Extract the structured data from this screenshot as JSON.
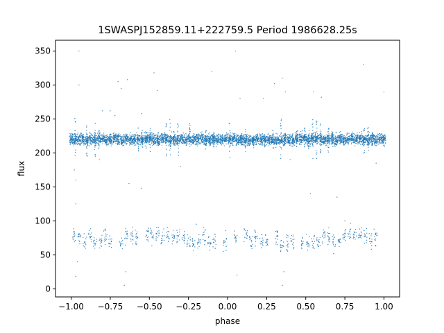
{
  "chart_data": {
    "type": "scatter",
    "title": "1SWASPJ152859.11+222759.5 Period 1986628.25s",
    "xlabel": "phase",
    "ylabel": "flux",
    "xlim": [
      -1.1,
      1.1
    ],
    "ylim": [
      -12,
      366
    ],
    "xticks": [
      -1.0,
      -0.75,
      -0.5,
      -0.25,
      0.0,
      0.25,
      0.5,
      0.75,
      1.0
    ],
    "xtick_labels": [
      "−1.00",
      "−0.75",
      "−0.50",
      "−0.25",
      "0.00",
      "0.25",
      "0.50",
      "0.75",
      "1.00"
    ],
    "yticks": [
      0,
      50,
      100,
      150,
      200,
      250,
      300,
      350
    ],
    "ytick_labels": [
      "0",
      "50",
      "100",
      "150",
      "200",
      "250",
      "300",
      "350"
    ],
    "grid": false,
    "point_color": "#1f77b4",
    "series": [
      {
        "name": "",
        "bands": [
          {
            "x_range": [
              -1.0,
              1.0
            ],
            "y_center": 220,
            "y_spread": 4,
            "points_per_cluster": 60
          },
          {
            "x_range": [
              -0.98,
              0.98
            ],
            "y_center": 73,
            "y_spread": 6,
            "points_per_cluster": 14
          }
        ],
        "outliers": [
          [
            -0.95,
            350
          ],
          [
            -0.95,
            300
          ],
          [
            -0.7,
            305
          ],
          [
            -0.68,
            295
          ],
          [
            -0.64,
            308
          ],
          [
            -0.47,
            318
          ],
          [
            -0.45,
            292
          ],
          [
            -0.8,
            262
          ],
          [
            -0.75,
            262
          ],
          [
            -0.72,
            255
          ],
          [
            -0.55,
            258
          ],
          [
            -0.1,
            320
          ],
          [
            0.05,
            350
          ],
          [
            0.08,
            280
          ],
          [
            0.23,
            280
          ],
          [
            0.3,
            302
          ],
          [
            0.35,
            310
          ],
          [
            0.37,
            290
          ],
          [
            0.55,
            290
          ],
          [
            0.6,
            282
          ],
          [
            0.87,
            330
          ],
          [
            1.0,
            290
          ],
          [
            -0.97,
            160
          ],
          [
            -0.98,
            175
          ],
          [
            -0.63,
            155
          ],
          [
            -0.55,
            148
          ],
          [
            -0.65,
            25
          ],
          [
            -0.66,
            5
          ],
          [
            -0.96,
            40
          ],
          [
            -0.97,
            18
          ],
          [
            -0.97,
            125
          ],
          [
            0.36,
            25
          ],
          [
            0.35,
            5
          ],
          [
            0.06,
            20
          ],
          [
            0.53,
            140
          ],
          [
            0.7,
            135
          ],
          [
            -0.3,
            180
          ],
          [
            0.4,
            190
          ],
          [
            0.75,
            100
          ],
          [
            -0.82,
            190
          ],
          [
            0.95,
            185
          ],
          [
            -0.2,
            95
          ]
        ]
      }
    ]
  }
}
